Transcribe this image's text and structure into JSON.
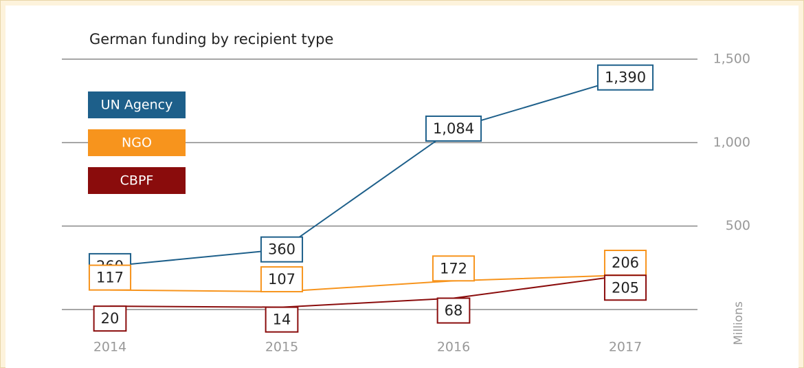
{
  "chart_data": {
    "type": "line",
    "title": "German funding by recipient type",
    "y_axis_label": "Millions",
    "categories": [
      "2014",
      "2015",
      "2016",
      "2017"
    ],
    "series": [
      {
        "name": "UN Agency",
        "color": "#1d5f8a",
        "values": [
          260,
          360,
          1084,
          1390
        ],
        "value_labels": [
          "260",
          "360",
          "1,084",
          "1,390"
        ]
      },
      {
        "name": "NGO",
        "color": "#f7941d",
        "values": [
          117,
          107,
          172,
          206
        ]
      },
      {
        "name": "CBPF",
        "color": "#8a0c0c",
        "values": [
          20,
          14,
          68,
          205
        ]
      }
    ],
    "ylim": [
      0,
      1500
    ],
    "yticks": [
      500,
      {
        "value": 1000,
        "label": "1,000"
      },
      {
        "value": 1500,
        "label": "1,500"
      }
    ],
    "grid": true
  }
}
